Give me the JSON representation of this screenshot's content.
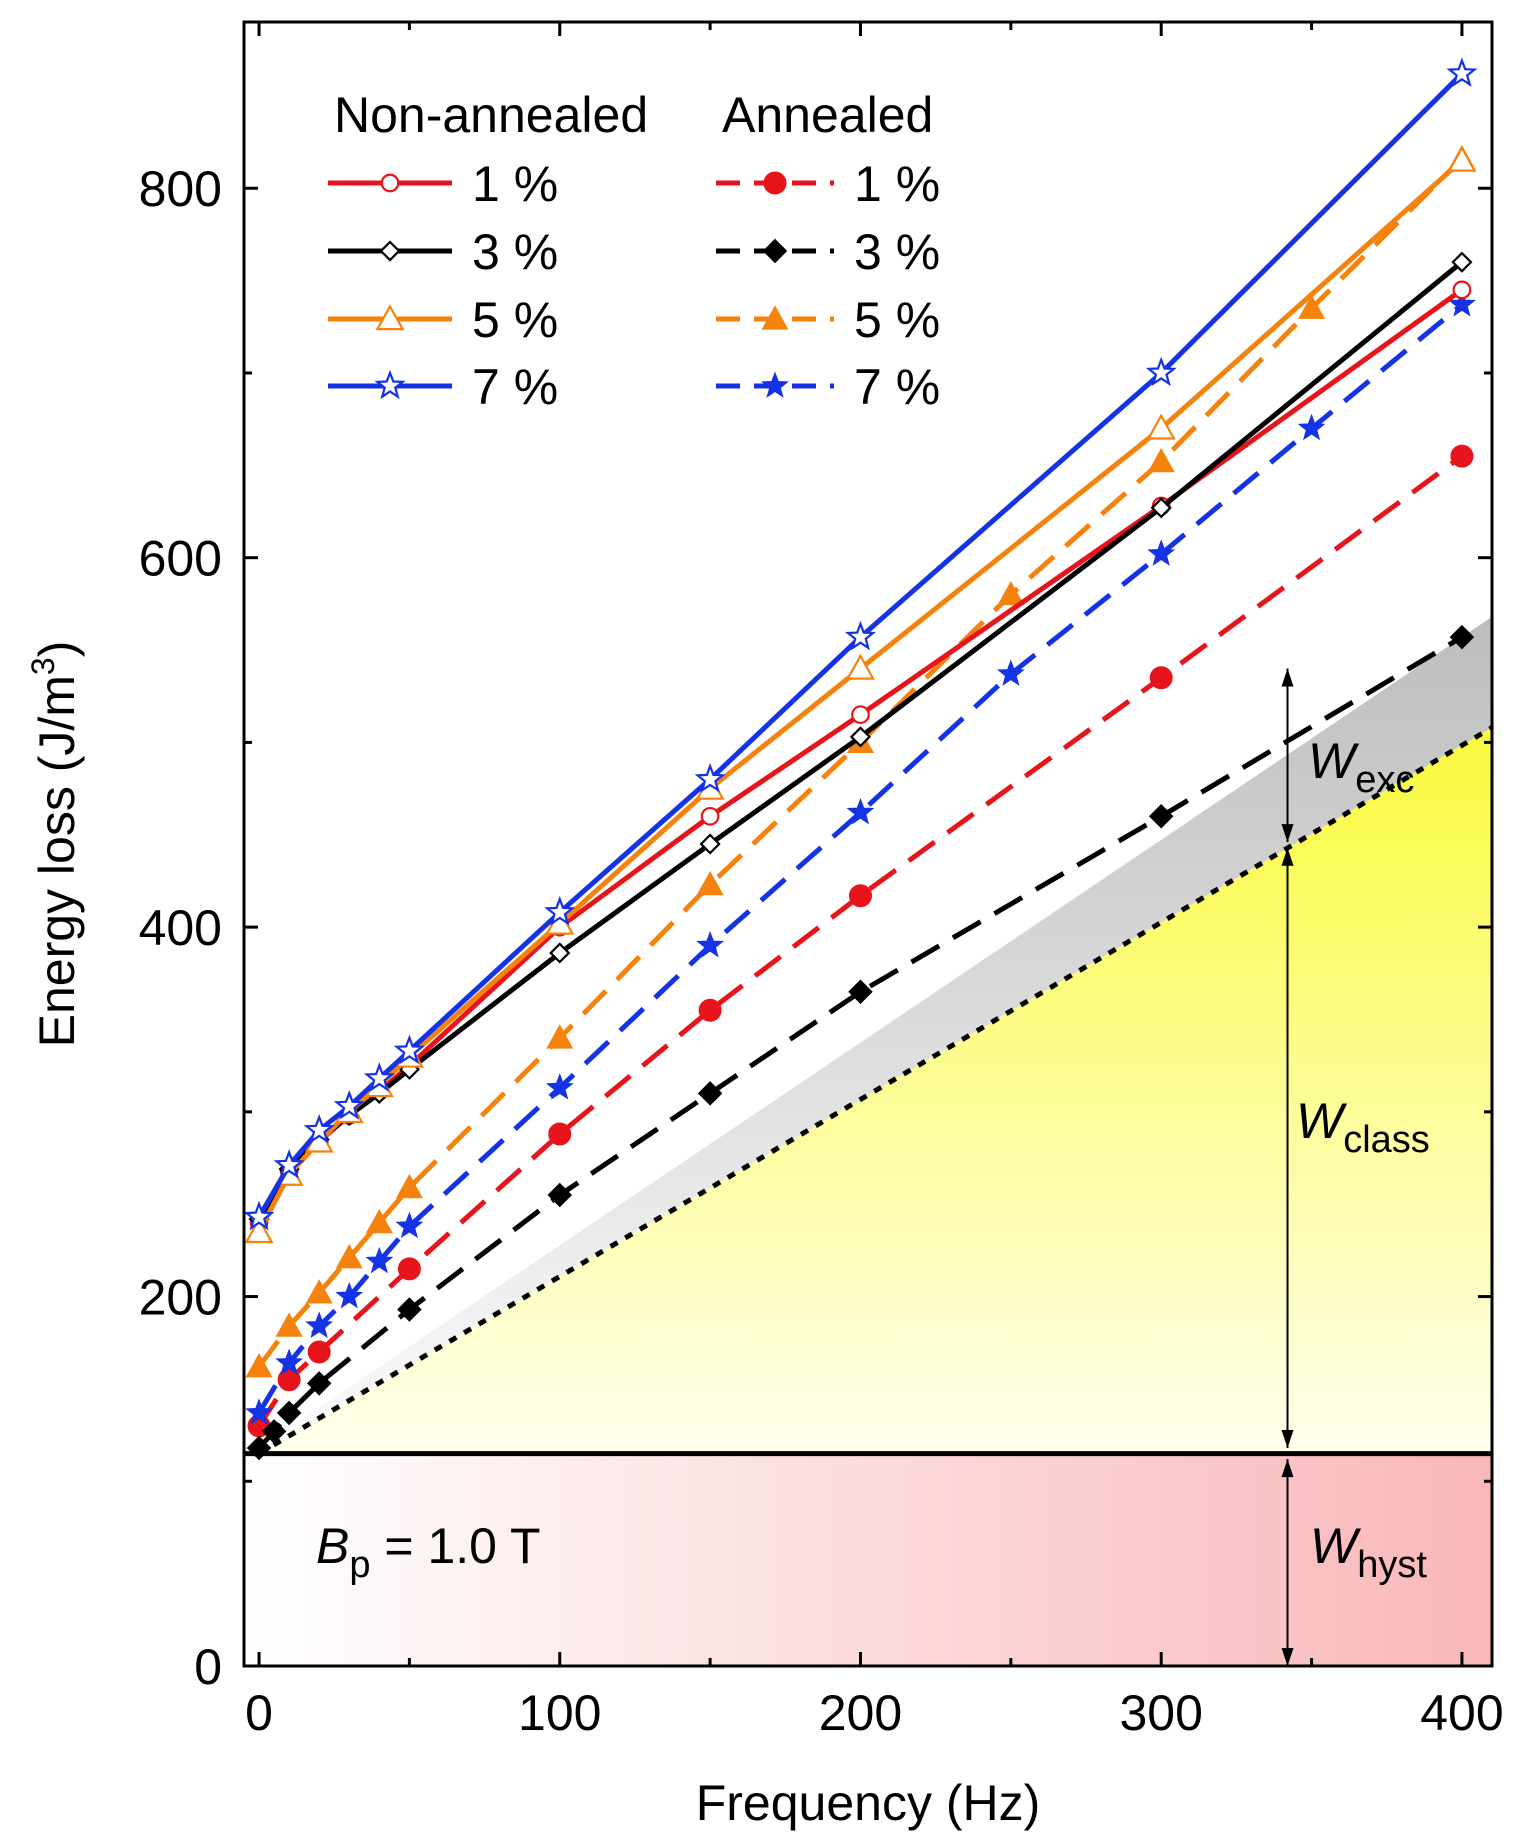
{
  "chart_data": {
    "type": "line",
    "xlabel": "Frequency (Hz)",
    "ylabel_main": "Energy loss (J/m",
    "ylabel_sup": "3",
    "ylabel_close": ")",
    "xlim": [
      -5,
      410
    ],
    "ylim": [
      0,
      890
    ],
    "xticks": [
      0,
      100,
      200,
      300,
      400
    ],
    "yticks": [
      0,
      200,
      400,
      600,
      800
    ],
    "xtick_labels": [
      "0",
      "100",
      "200",
      "300",
      "400"
    ],
    "ytick_labels": [
      "0",
      "200",
      "400",
      "600",
      "800"
    ],
    "legend_placement": "top-left",
    "legend_group_titles": [
      "Non-annealed",
      "Annealed"
    ],
    "series": [
      {
        "name": "1 %",
        "group": "Non-annealed",
        "color": "#e8141b",
        "dash": false,
        "marker": "circle-open",
        "x": [
          0,
          10,
          20,
          30,
          40,
          50,
          100,
          150,
          200,
          300,
          400
        ],
        "y": [
          240,
          268,
          284,
          298,
          311,
          325,
          400,
          460,
          515,
          628,
          745
        ]
      },
      {
        "name": "3 %",
        "group": "Non-annealed",
        "color": "#000000",
        "dash": false,
        "marker": "diamond-open",
        "x": [
          0,
          10,
          20,
          30,
          40,
          50,
          100,
          150,
          200,
          300,
          400
        ],
        "y": [
          242,
          269,
          285,
          298,
          310,
          323,
          386,
          445,
          503,
          627,
          760
        ]
      },
      {
        "name": "5 %",
        "group": "Non-annealed",
        "color": "#f5820d",
        "dash": false,
        "marker": "triangle-open",
        "x": [
          0,
          10,
          20,
          30,
          40,
          50,
          100,
          150,
          200,
          300,
          400
        ],
        "y": [
          235,
          266,
          284,
          300,
          314,
          330,
          402,
          475,
          540,
          670,
          815
        ]
      },
      {
        "name": "7 %",
        "group": "Non-annealed",
        "color": "#1432e6",
        "dash": false,
        "marker": "star-open",
        "x": [
          0,
          10,
          20,
          30,
          40,
          50,
          100,
          150,
          200,
          300,
          400
        ],
        "y": [
          243,
          271,
          290,
          303,
          318,
          333,
          408,
          480,
          557,
          700,
          862
        ]
      },
      {
        "name": "1 %",
        "group": "Annealed",
        "color": "#e8141b",
        "dash": true,
        "marker": "circle",
        "x": [
          0,
          10,
          20,
          50,
          100,
          150,
          200,
          300,
          400
        ],
        "y": [
          130,
          155,
          170,
          215,
          288,
          355,
          417,
          535,
          655
        ]
      },
      {
        "name": "3 %",
        "group": "Annealed",
        "color": "#000000",
        "dash": true,
        "marker": "diamond",
        "x": [
          0,
          5,
          10,
          20,
          50,
          100,
          150,
          200,
          300,
          400
        ],
        "y": [
          118,
          127,
          137,
          153,
          193,
          255,
          310,
          365,
          460,
          557
        ]
      },
      {
        "name": "5 %",
        "group": "Annealed",
        "color": "#f5820d",
        "dash": true,
        "marker": "triangle",
        "x": [
          0,
          10,
          20,
          30,
          40,
          50,
          100,
          150,
          200,
          250,
          300,
          350,
          400
        ],
        "y": [
          162,
          184,
          202,
          221,
          240,
          259,
          340,
          423,
          500,
          580,
          652,
          735,
          816
        ]
      },
      {
        "name": "7 %",
        "group": "Annealed",
        "color": "#1432e6",
        "dash": true,
        "marker": "star",
        "x": [
          0,
          10,
          20,
          30,
          40,
          50,
          100,
          150,
          200,
          250,
          300,
          350,
          400
        ],
        "y": [
          137,
          164,
          184,
          200,
          219,
          238,
          313,
          390,
          462,
          537,
          602,
          670,
          737
        ]
      }
    ],
    "reference_lines": {
      "hyst_level": 115,
      "class_line": {
        "x": [
          0,
          410
        ],
        "y": [
          115,
          508
        ]
      },
      "exc_line": {
        "x": [
          0,
          410
        ],
        "y": [
          118,
          568
        ]
      }
    },
    "annotations": {
      "exc": {
        "base": "W",
        "sub": "exc"
      },
      "class": {
        "base": "W",
        "sub": "class"
      },
      "hyst": {
        "base": "W",
        "sub": "hyst"
      },
      "bp": {
        "base": "B",
        "sub": "p",
        "rest": " = 1.0 T"
      },
      "arrow_x": 342,
      "exc_arrow_y": [
        446,
        540
      ],
      "class_arrow_y": [
        118,
        443
      ],
      "hyst_arrow_y": [
        0,
        112
      ]
    },
    "fill_colors": {
      "hyst_light": "#ffffff",
      "hyst_dark": "#f9b7b9",
      "class_light": "#ffffee",
      "class_dark": "#fafa3c",
      "exc_light": "#fbfbfb",
      "exc_dark": "#bdbdbd"
    }
  }
}
